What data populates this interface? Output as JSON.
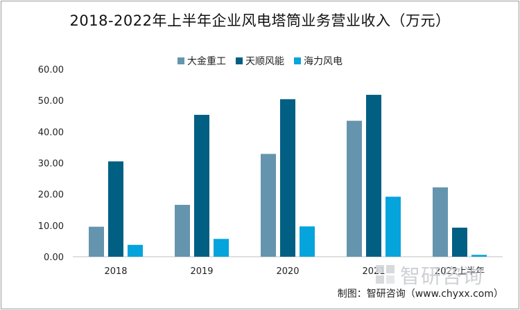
{
  "chart_data": {
    "type": "bar",
    "title": "2018-2022年上半年企业风电塔筒业务营业收入（万元）",
    "categories": [
      "2018",
      "2019",
      "2020",
      "2021",
      "2022上半年"
    ],
    "series": [
      {
        "name": "大金重工",
        "color": "#6595ae",
        "values": [
          9.6,
          16.6,
          32.9,
          43.5,
          22.2
        ]
      },
      {
        "name": "天顺风能",
        "color": "#005f83",
        "values": [
          30.5,
          45.4,
          50.4,
          51.8,
          9.3
        ]
      },
      {
        "name": "海力风电",
        "color": "#05a4dc",
        "values": [
          3.8,
          5.7,
          9.7,
          19.2,
          0.6
        ]
      }
    ],
    "y_ticks": [
      "0.00",
      "10.00",
      "20.00",
      "30.00",
      "40.00",
      "50.00",
      "60.00"
    ],
    "ylim": [
      0,
      60
    ],
    "legend_position": "top-center",
    "grid": false
  },
  "watermark_text": "智研咨询",
  "source_text": "制图：智研咨询（www.chyxx.com）"
}
